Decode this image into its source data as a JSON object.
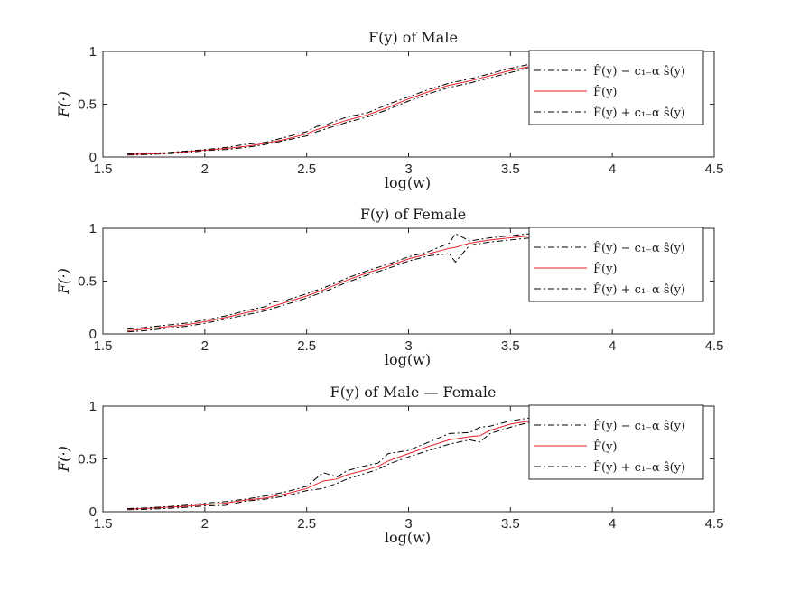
{
  "chart_data": [
    {
      "type": "line",
      "title": "F(y) of Male",
      "xlabel": "log(w)",
      "ylabel": "F(·)",
      "xlim": [
        1.5,
        4.5
      ],
      "ylim": [
        0,
        1
      ],
      "xticks": [
        "1.5",
        "2",
        "2.5",
        "3",
        "3.5",
        "4",
        "4.5"
      ],
      "yticks": [
        "0",
        "0.5",
        "1"
      ],
      "legend_position": "right",
      "series": [
        {
          "name": "F̂(y) − c₁₋α ŝ(y)",
          "color": "#000000",
          "style": "dashdot",
          "x": [
            1.62,
            1.7,
            1.8,
            1.9,
            2.0,
            2.1,
            2.2,
            2.3,
            2.4,
            2.5,
            2.55,
            2.6,
            2.7,
            2.8,
            2.9,
            3.0,
            3.1,
            3.2,
            3.3,
            3.4,
            3.5,
            3.6,
            3.7,
            3.8,
            3.9,
            4.05
          ],
          "y": [
            0.02,
            0.022,
            0.03,
            0.04,
            0.06,
            0.07,
            0.09,
            0.12,
            0.16,
            0.2,
            0.24,
            0.27,
            0.33,
            0.38,
            0.45,
            0.53,
            0.6,
            0.66,
            0.7,
            0.75,
            0.8,
            0.85,
            0.88,
            0.9,
            0.93,
            0.95
          ]
        },
        {
          "name": "F̂(y)",
          "color": "#e8202a",
          "style": "solid",
          "x": [
            1.62,
            1.7,
            1.8,
            1.9,
            2.0,
            2.1,
            2.2,
            2.3,
            2.4,
            2.5,
            2.55,
            2.6,
            2.7,
            2.8,
            2.9,
            3.0,
            3.1,
            3.2,
            3.3,
            3.4,
            3.5,
            3.6,
            3.7,
            3.8,
            3.9,
            4.05
          ],
          "y": [
            0.025,
            0.028,
            0.035,
            0.05,
            0.065,
            0.08,
            0.1,
            0.13,
            0.17,
            0.22,
            0.26,
            0.29,
            0.35,
            0.4,
            0.47,
            0.55,
            0.62,
            0.68,
            0.72,
            0.77,
            0.82,
            0.86,
            0.89,
            0.91,
            0.93,
            0.95
          ]
        },
        {
          "name": "F̂(y) + c₁₋α ŝ(y)",
          "color": "#000000",
          "style": "dashdot",
          "x": [
            1.62,
            1.7,
            1.8,
            1.9,
            2.0,
            2.1,
            2.2,
            2.3,
            2.4,
            2.5,
            2.55,
            2.6,
            2.7,
            2.8,
            2.9,
            3.0,
            3.1,
            3.2,
            3.3,
            3.4,
            3.5,
            3.6,
            3.7,
            3.8,
            3.9,
            4.05
          ],
          "y": [
            0.03,
            0.034,
            0.04,
            0.055,
            0.07,
            0.09,
            0.12,
            0.14,
            0.19,
            0.24,
            0.29,
            0.31,
            0.38,
            0.42,
            0.5,
            0.57,
            0.64,
            0.7,
            0.74,
            0.79,
            0.84,
            0.88,
            0.91,
            0.93,
            0.95,
            0.97
          ]
        }
      ]
    },
    {
      "type": "line",
      "title": "F(y) of Female",
      "xlabel": "log(w)",
      "ylabel": "F(·)",
      "xlim": [
        1.5,
        4.5
      ],
      "ylim": [
        0,
        1
      ],
      "xticks": [
        "1.5",
        "2",
        "2.5",
        "3",
        "3.5",
        "4",
        "4.5"
      ],
      "yticks": [
        "0",
        "0.5",
        "1"
      ],
      "legend_position": "right",
      "series": [
        {
          "name": "F̂(y) − c₁₋α ŝ(y)",
          "color": "#000000",
          "style": "dashdot",
          "x": [
            1.62,
            1.7,
            1.8,
            1.9,
            2.0,
            2.1,
            2.2,
            2.3,
            2.33,
            2.4,
            2.5,
            2.6,
            2.7,
            2.8,
            2.9,
            3.0,
            3.1,
            3.2,
            3.23,
            3.3,
            3.4,
            3.5,
            3.6,
            3.7,
            3.8,
            3.9,
            4.05
          ],
          "y": [
            0.02,
            0.03,
            0.05,
            0.07,
            0.1,
            0.14,
            0.18,
            0.22,
            0.24,
            0.28,
            0.34,
            0.41,
            0.49,
            0.56,
            0.62,
            0.69,
            0.74,
            0.76,
            0.68,
            0.84,
            0.87,
            0.89,
            0.91,
            0.92,
            0.93,
            0.94,
            0.95
          ]
        },
        {
          "name": "F̂(y)",
          "color": "#e8202a",
          "style": "solid",
          "x": [
            1.62,
            1.7,
            1.8,
            1.9,
            2.0,
            2.1,
            2.2,
            2.3,
            2.33,
            2.4,
            2.5,
            2.6,
            2.7,
            2.8,
            2.9,
            3.0,
            3.1,
            3.2,
            3.23,
            3.3,
            3.4,
            3.5,
            3.6,
            3.7,
            3.8,
            3.9,
            4.05
          ],
          "y": [
            0.03,
            0.045,
            0.065,
            0.085,
            0.115,
            0.155,
            0.2,
            0.24,
            0.26,
            0.3,
            0.36,
            0.43,
            0.51,
            0.58,
            0.64,
            0.71,
            0.76,
            0.81,
            0.82,
            0.86,
            0.89,
            0.91,
            0.93,
            0.94,
            0.95,
            0.96,
            0.97
          ]
        },
        {
          "name": "F̂(y) + c₁₋α ŝ(y)",
          "color": "#000000",
          "style": "dashdot",
          "x": [
            1.62,
            1.7,
            1.8,
            1.9,
            2.0,
            2.1,
            2.2,
            2.3,
            2.33,
            2.4,
            2.5,
            2.6,
            2.7,
            2.8,
            2.9,
            3.0,
            3.1,
            3.2,
            3.23,
            3.3,
            3.4,
            3.5,
            3.6,
            3.7,
            3.8,
            3.9,
            4.05
          ],
          "y": [
            0.045,
            0.06,
            0.08,
            0.1,
            0.13,
            0.17,
            0.22,
            0.26,
            0.3,
            0.32,
            0.38,
            0.45,
            0.53,
            0.6,
            0.66,
            0.73,
            0.78,
            0.86,
            0.95,
            0.88,
            0.91,
            0.93,
            0.95,
            0.96,
            0.97,
            0.98,
            1.0
          ]
        }
      ]
    },
    {
      "type": "line",
      "title": "F(y) of Male — Female",
      "xlabel": "log(w)",
      "ylabel": "F(·)",
      "xlim": [
        1.5,
        4.5
      ],
      "ylim": [
        0,
        1
      ],
      "xticks": [
        "1.5",
        "2",
        "2.5",
        "3",
        "3.5",
        "4",
        "4.5"
      ],
      "yticks": [
        "0",
        "0.5",
        "1"
      ],
      "legend_position": "right",
      "series": [
        {
          "name": "F̂(y) − c₁₋α ŝ(y)",
          "color": "#000000",
          "style": "dashdot",
          "x": [
            1.62,
            1.7,
            1.8,
            1.9,
            2.0,
            2.1,
            2.2,
            2.3,
            2.4,
            2.5,
            2.58,
            2.65,
            2.7,
            2.8,
            2.85,
            2.9,
            3.0,
            3.1,
            3.2,
            3.3,
            3.35,
            3.4,
            3.5,
            3.6,
            3.7,
            3.8,
            3.9,
            4.05
          ],
          "y": [
            0.02,
            0.022,
            0.03,
            0.04,
            0.055,
            0.06,
            0.1,
            0.12,
            0.15,
            0.2,
            0.22,
            0.27,
            0.31,
            0.37,
            0.4,
            0.45,
            0.52,
            0.58,
            0.64,
            0.68,
            0.66,
            0.74,
            0.8,
            0.85,
            0.88,
            0.9,
            0.92,
            0.94
          ]
        },
        {
          "name": "F̂(y)",
          "color": "#e8202a",
          "style": "solid",
          "x": [
            1.62,
            1.7,
            1.8,
            1.9,
            2.0,
            2.1,
            2.2,
            2.3,
            2.4,
            2.5,
            2.58,
            2.65,
            2.7,
            2.8,
            2.85,
            2.9,
            3.0,
            3.1,
            3.2,
            3.3,
            3.35,
            3.4,
            3.5,
            3.6,
            3.7,
            3.8,
            3.9,
            4.05
          ],
          "y": [
            0.025,
            0.03,
            0.04,
            0.05,
            0.065,
            0.08,
            0.11,
            0.13,
            0.17,
            0.22,
            0.29,
            0.31,
            0.35,
            0.4,
            0.43,
            0.48,
            0.55,
            0.62,
            0.68,
            0.71,
            0.72,
            0.77,
            0.83,
            0.86,
            0.89,
            0.91,
            0.93,
            0.95
          ]
        },
        {
          "name": "F̂(y) + c₁₋α ŝ(y)",
          "color": "#000000",
          "style": "dashdot",
          "x": [
            1.62,
            1.7,
            1.8,
            1.9,
            2.0,
            2.1,
            2.2,
            2.3,
            2.4,
            2.5,
            2.58,
            2.65,
            2.7,
            2.8,
            2.85,
            2.9,
            3.0,
            3.1,
            3.2,
            3.3,
            3.35,
            3.4,
            3.5,
            3.6,
            3.7,
            3.8,
            3.9,
            4.05
          ],
          "y": [
            0.03,
            0.035,
            0.045,
            0.06,
            0.08,
            0.095,
            0.12,
            0.15,
            0.19,
            0.24,
            0.37,
            0.33,
            0.39,
            0.44,
            0.46,
            0.55,
            0.58,
            0.66,
            0.74,
            0.75,
            0.8,
            0.81,
            0.86,
            0.89,
            0.92,
            0.94,
            0.95,
            0.97
          ]
        }
      ]
    }
  ]
}
